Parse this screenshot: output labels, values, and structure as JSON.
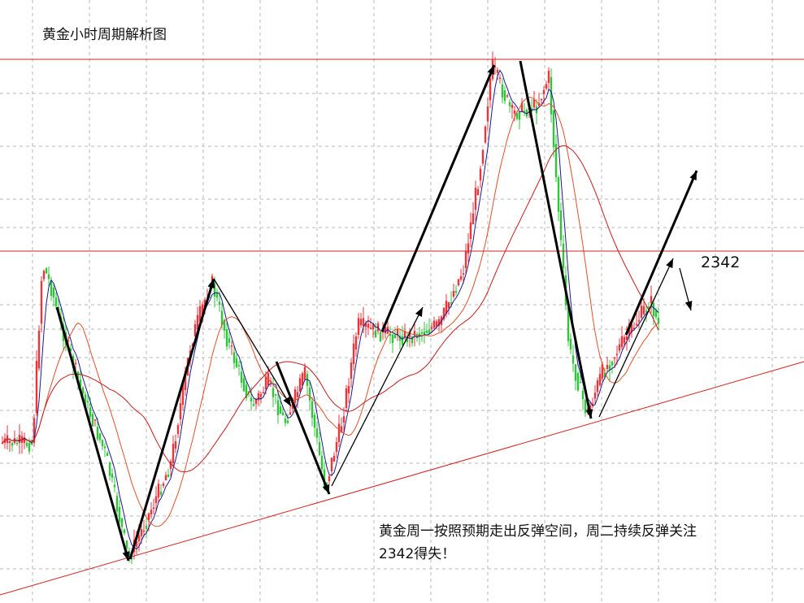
{
  "chart_data": {
    "type": "candlestick",
    "title": "黄金小时周期解析图",
    "xlabel": "",
    "ylabel": "",
    "grid": true,
    "colors": {
      "up_candle": "#e8363c",
      "down_candle": "#2fc43a",
      "resistance_line": "#d42020",
      "trendline": "#d42020",
      "ma_fast": "#1a1a8c",
      "ma_mid": "#e0502a",
      "ma_slow": "#c81a1a",
      "arrow": "#000000"
    },
    "resistance_level": "2342",
    "annotation_line1": "黄金周一按照预期走出反弹空间，周二持续反弹关注",
    "annotation_line2": "2342得失！",
    "price_path": [
      [
        0,
        545
      ],
      [
        40,
        545
      ],
      [
        52,
        325
      ],
      [
        62,
        350
      ],
      [
        72,
        390
      ],
      [
        100,
        480
      ],
      [
        130,
        560
      ],
      [
        158,
        688
      ],
      [
        180,
        640
      ],
      [
        210,
        570
      ],
      [
        235,
        420
      ],
      [
        260,
        345
      ],
      [
        280,
        420
      ],
      [
        310,
        500
      ],
      [
        330,
        470
      ],
      [
        350,
        520
      ],
      [
        375,
        460
      ],
      [
        400,
        600
      ],
      [
        420,
        520
      ],
      [
        440,
        400
      ],
      [
        470,
        410
      ],
      [
        500,
        415
      ],
      [
        540,
        400
      ],
      [
        570,
        330
      ],
      [
        590,
        210
      ],
      [
        605,
        80
      ],
      [
        630,
        140
      ],
      [
        660,
        130
      ],
      [
        675,
        95
      ],
      [
        690,
        300
      ],
      [
        700,
        430
      ],
      [
        722,
        510
      ],
      [
        740,
        460
      ],
      [
        760,
        430
      ],
      [
        780,
        400
      ],
      [
        800,
        370
      ],
      [
        810,
        400
      ]
    ]
  }
}
